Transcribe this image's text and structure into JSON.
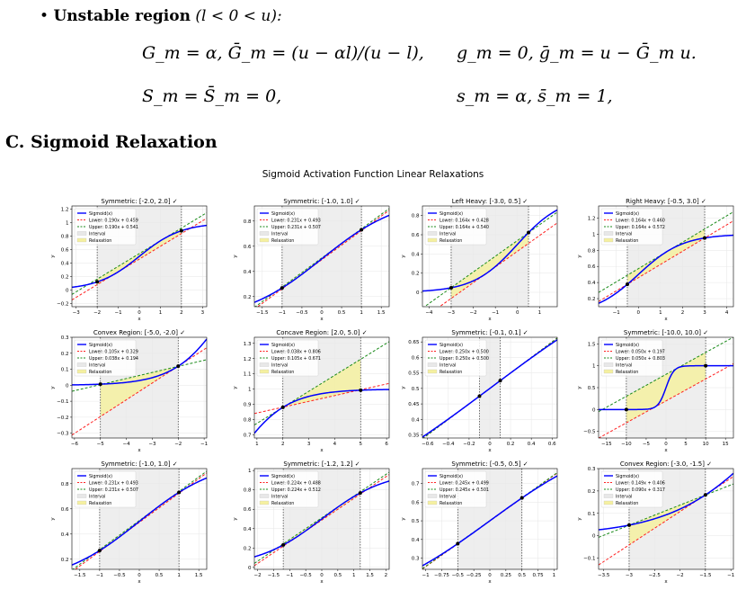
{
  "bullet": {
    "label": "Unstable region",
    "condition": "(l < 0 < u):"
  },
  "equations": {
    "row1_left": "G_m = α,   Ḡ_m = (u − αl)/(u − l),",
    "row1_right": "g_m = 0,   ḡ_m = u − Ḡ_m u.",
    "row2_left": "S_m = S̄_m = 0,",
    "row2_right": "s_m = α,   s̄_m = 1,"
  },
  "section_title": "C. Sigmoid Relaxation",
  "chart_data": {
    "type": "line",
    "suptitle": "Sigmoid Activation Function Linear Relaxations",
    "legend_entries": [
      "Sigmoid(x)",
      "Interval",
      "Relaxation"
    ],
    "xlabel": "x",
    "ylabel": "y",
    "colors": {
      "sigmoid": "#0000ff",
      "lower": "#ff2020",
      "upper": "#1a8a1a",
      "interval": "#e8e8e8",
      "relaxation": "#f5f0a0"
    },
    "panels": [
      {
        "title": "Symmetric: [-2.0, 2.0] ✓",
        "l": -2,
        "u": 2,
        "xlim": [
          -3.2,
          3.2
        ],
        "ylim": [
          -0.25,
          1.25
        ],
        "lower": {
          "a": 0.19,
          "b": 0.459,
          "label": "Lower: 0.190x + 0.459"
        },
        "upper": {
          "a": 0.19,
          "b": 0.541,
          "label": "Upper: 0.190x + 0.541"
        },
        "xticks": [
          -3,
          -2,
          -1,
          0,
          1,
          2,
          3
        ],
        "yticks": [
          -0.2,
          0,
          0.2,
          0.4,
          0.6,
          0.8,
          1.0,
          1.2
        ]
      },
      {
        "title": "Symmetric: [-1.0, 1.0] ✓",
        "l": -1,
        "u": 1,
        "xlim": [
          -1.7,
          1.7
        ],
        "ylim": [
          0.12,
          0.92
        ],
        "lower": {
          "a": 0.231,
          "b": 0.493,
          "label": "Lower: 0.231x + 0.493"
        },
        "upper": {
          "a": 0.231,
          "b": 0.507,
          "label": "Upper: 0.231x + 0.507"
        },
        "xticks": [
          -1.5,
          -1.0,
          -0.5,
          0.0,
          0.5,
          1.0,
          1.5
        ],
        "yticks": [
          0.2,
          0.4,
          0.6,
          0.8
        ]
      },
      {
        "title": "Left Heavy: [-3.0, 0.5] ✓",
        "l": -3,
        "u": 0.5,
        "xlim": [
          -4.3,
          1.8
        ],
        "ylim": [
          -0.15,
          0.9
        ],
        "lower": {
          "a": 0.164,
          "b": 0.428,
          "label": "Lower: 0.164x + 0.428"
        },
        "upper": {
          "a": 0.164,
          "b": 0.54,
          "label": "Upper: 0.164x + 0.540"
        },
        "xticks": [
          -4,
          -3,
          -2,
          -1,
          0,
          1
        ],
        "yticks": [
          0.0,
          0.2,
          0.4,
          0.6,
          0.8
        ]
      },
      {
        "title": "Right Heavy: [-0.5, 3.0] ✓",
        "l": -0.5,
        "u": 3,
        "xlim": [
          -1.8,
          4.3
        ],
        "ylim": [
          0.1,
          1.35
        ],
        "lower": {
          "a": 0.164,
          "b": 0.46,
          "label": "Lower: 0.164x + 0.460"
        },
        "upper": {
          "a": 0.164,
          "b": 0.572,
          "label": "Upper: 0.164x + 0.572"
        },
        "xticks": [
          -1,
          0,
          1,
          2,
          3,
          4
        ],
        "yticks": [
          0.2,
          0.4,
          0.6,
          0.8,
          1.0,
          1.2
        ]
      },
      {
        "title": "Convex Region: [-5.0, -2.0] ✓",
        "l": -5,
        "u": -2,
        "xlim": [
          -6.1,
          -0.9
        ],
        "ylim": [
          -0.33,
          0.3
        ],
        "lower": {
          "a": 0.105,
          "b": 0.329,
          "label": "Lower: 0.105x + 0.329"
        },
        "upper": {
          "a": 0.038,
          "b": 0.194,
          "label": "Upper: 0.038x + 0.194"
        },
        "xticks": [
          -6,
          -5,
          -4,
          -3,
          -2,
          -1
        ],
        "yticks": [
          -0.3,
          -0.2,
          -0.1,
          0.0,
          0.1,
          0.2,
          0.3
        ]
      },
      {
        "title": "Concave Region: [2.0, 5.0] ✓",
        "l": 2,
        "u": 5,
        "xlim": [
          0.9,
          6.1
        ],
        "ylim": [
          0.68,
          1.34
        ],
        "lower": {
          "a": 0.038,
          "b": 0.806,
          "label": "Lower: 0.038x + 0.806"
        },
        "upper": {
          "a": 0.105,
          "b": 0.671,
          "label": "Upper: 0.105x + 0.671"
        },
        "xticks": [
          1,
          2,
          3,
          4,
          5,
          6
        ],
        "yticks": [
          0.7,
          0.8,
          0.9,
          1.0,
          1.1,
          1.2,
          1.3
        ]
      },
      {
        "title": "Symmetric: [-0.1, 0.1] ✓",
        "l": -0.1,
        "u": 0.1,
        "xlim": [
          -0.65,
          0.65
        ],
        "ylim": [
          0.34,
          0.665
        ],
        "lower": {
          "a": 0.25,
          "b": 0.5,
          "label": "Lower: 0.250x + 0.500"
        },
        "upper": {
          "a": 0.25,
          "b": 0.5,
          "label": "Upper: 0.250x + 0.500"
        },
        "xticks": [
          -0.6,
          -0.4,
          -0.2,
          0.0,
          0.2,
          0.4,
          0.6
        ],
        "yticks": [
          0.35,
          0.4,
          0.45,
          0.5,
          0.55,
          0.6,
          0.65
        ]
      },
      {
        "title": "Symmetric: [-10.0, 10.0] ✓",
        "l": -10,
        "u": 10,
        "xlim": [
          -17,
          17
        ],
        "ylim": [
          -0.65,
          1.65
        ],
        "lower": {
          "a": 0.05,
          "b": 0.197,
          "label": "Lower: 0.050x + 0.197"
        },
        "upper": {
          "a": 0.05,
          "b": 0.803,
          "label": "Upper: 0.050x + 0.803"
        },
        "xticks": [
          -15,
          -10,
          -5,
          0,
          5,
          10,
          15
        ],
        "yticks": [
          -0.5,
          0.0,
          0.5,
          1.0,
          1.5
        ]
      },
      {
        "title": "Symmetric: [-1.0, 1.0] ✓",
        "l": -1,
        "u": 1,
        "xlim": [
          -1.7,
          1.7
        ],
        "ylim": [
          0.12,
          0.92
        ],
        "lower": {
          "a": 0.231,
          "b": 0.493,
          "label": "Lower: 0.231x + 0.493"
        },
        "upper": {
          "a": 0.231,
          "b": 0.507,
          "label": "Upper: 0.231x + 0.507"
        },
        "xticks": [
          -1.5,
          -1.0,
          -0.5,
          0.0,
          0.5,
          1.0,
          1.5
        ],
        "yticks": [
          0.2,
          0.4,
          0.6,
          0.8
        ]
      },
      {
        "title": "Symmetric: [-1.2, 1.2] ✓",
        "l": -1.2,
        "u": 1.2,
        "xlim": [
          -2.1,
          2.1
        ],
        "ylim": [
          -0.02,
          1.02
        ],
        "lower": {
          "a": 0.224,
          "b": 0.488,
          "label": "Lower: 0.224x + 0.488"
        },
        "upper": {
          "a": 0.224,
          "b": 0.512,
          "label": "Upper: 0.224x + 0.512"
        },
        "xticks": [
          -2.0,
          -1.5,
          -1.0,
          -0.5,
          0.0,
          0.5,
          1.0,
          1.5,
          2.0
        ],
        "yticks": [
          0.0,
          0.2,
          0.4,
          0.6,
          0.8,
          1.0
        ]
      },
      {
        "title": "Symmetric: [-0.5, 0.5] ✓",
        "l": -0.5,
        "u": 0.5,
        "xlim": [
          -1.05,
          1.05
        ],
        "ylim": [
          0.24,
          0.78
        ],
        "lower": {
          "a": 0.245,
          "b": 0.499,
          "label": "Lower: 0.245x + 0.499"
        },
        "upper": {
          "a": 0.245,
          "b": 0.501,
          "label": "Upper: 0.245x + 0.501"
        },
        "xticks": [
          -1.0,
          -0.75,
          -0.5,
          -0.25,
          0.0,
          0.25,
          0.5,
          0.75,
          1.0
        ],
        "yticks": [
          0.3,
          0.4,
          0.5,
          0.6,
          0.7
        ]
      },
      {
        "title": "Convex Region: [-3.0, -1.5] ✓",
        "l": -3,
        "u": -1.5,
        "xlim": [
          -3.6,
          -0.95
        ],
        "ylim": [
          -0.15,
          0.3
        ],
        "lower": {
          "a": 0.149,
          "b": 0.406,
          "label": "Lower: 0.149x + 0.406"
        },
        "upper": {
          "a": 0.09,
          "b": 0.317,
          "label": "Upper: 0.090x + 0.317"
        },
        "xticks": [
          -3.5,
          -3.0,
          -2.5,
          -2.0,
          -1.5,
          -1.0
        ],
        "yticks": [
          -0.1,
          0.0,
          0.1,
          0.2,
          0.3
        ]
      }
    ]
  }
}
